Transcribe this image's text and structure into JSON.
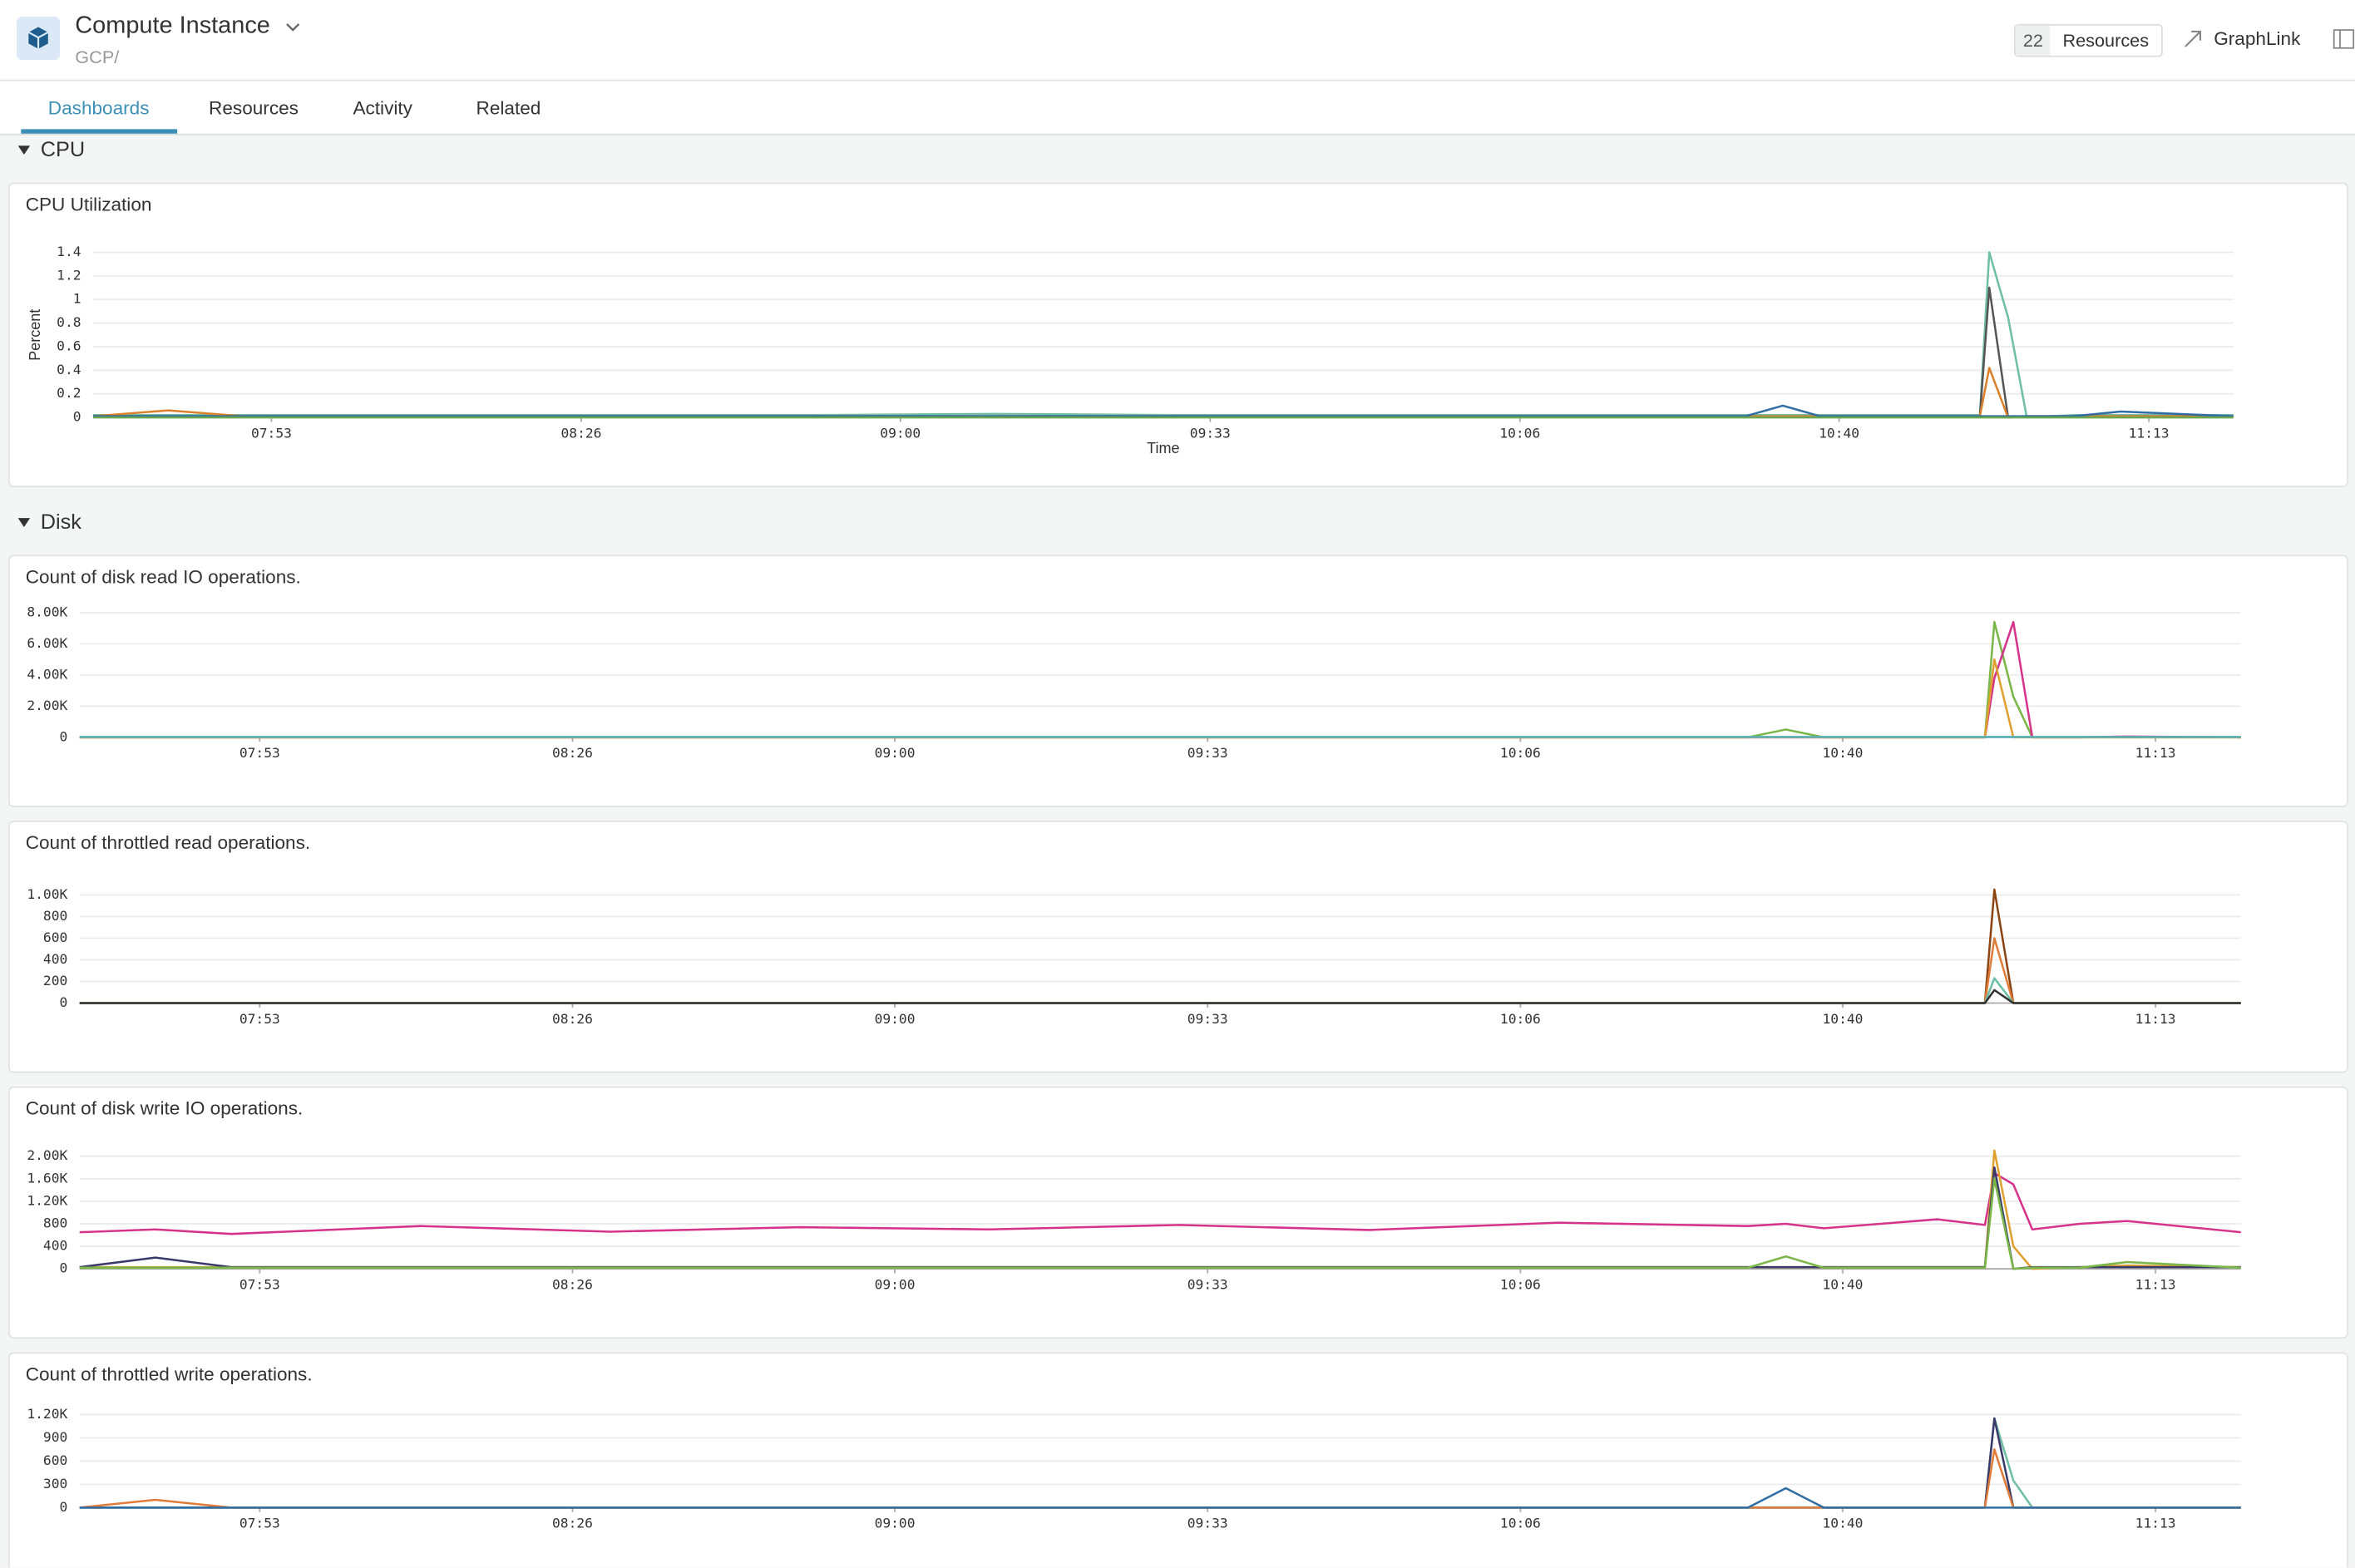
{
  "header": {
    "title": "Compute Instance",
    "subtitle": "GCP/",
    "resource_count": 22,
    "resources_label": "Resources",
    "graphlink": "GraphLink"
  },
  "tabs": [
    "Dashboards",
    "Resources",
    "Activity",
    "Related"
  ],
  "sections": [
    {
      "title": "CPU"
    },
    {
      "title": "Disk"
    }
  ],
  "chart_data": [
    {
      "type": "line",
      "title": "CPU Utilization",
      "ylabel": "Percent",
      "xlabel": "Time",
      "x": [
        454,
        462,
        470,
        490,
        510,
        530,
        550,
        570,
        590,
        610,
        630,
        634,
        638,
        650,
        655,
        656,
        658,
        660,
        665,
        670,
        682
      ],
      "xlim": [
        454,
        682
      ],
      "xticks": [
        {
          "value": 473,
          "label": "07:53"
        },
        {
          "value": 506,
          "label": "08:26"
        },
        {
          "value": 540,
          "label": "09:00"
        },
        {
          "value": 573,
          "label": "09:33"
        },
        {
          "value": 606,
          "label": "10:06"
        },
        {
          "value": 640,
          "label": "10:40"
        },
        {
          "value": 673,
          "label": "11:13"
        }
      ],
      "ylim": [
        0,
        1.4
      ],
      "yticks": [
        0,
        0.2,
        0.4,
        0.6,
        0.8,
        1,
        1.2,
        1.4
      ],
      "grid": true,
      "series": [
        {
          "name": "teal",
          "color": "#6fbfa8",
          "values": [
            0.02,
            0.02,
            0.02,
            0.02,
            0.02,
            0.02,
            0.03,
            0.02,
            0.02,
            0.02,
            0.02,
            0.02,
            0.02,
            0.02,
            0.02,
            1.4,
            0.85,
            0,
            0.02,
            0.02,
            0.02
          ]
        },
        {
          "name": "dark",
          "color": "#555555",
          "values": [
            0.01,
            0.01,
            0.01,
            0.01,
            0.01,
            0.01,
            0.01,
            0.01,
            0.01,
            0.01,
            0.01,
            0.01,
            0.01,
            0.01,
            0.01,
            1.1,
            0,
            0.01,
            0.01,
            0.01,
            0.01
          ]
        },
        {
          "name": "orange",
          "color": "#d9822b",
          "values": [
            0.01,
            0.06,
            0.01,
            0.01,
            0.01,
            0.01,
            0.01,
            0.01,
            0.01,
            0.01,
            0.01,
            0.01,
            0.01,
            0.01,
            0.01,
            0.42,
            0,
            0.01,
            0.01,
            0.01,
            0.01
          ]
        },
        {
          "name": "blue",
          "color": "#2f6da3",
          "values": [
            0.01,
            0.01,
            0.01,
            0.01,
            0.01,
            0.01,
            0.01,
            0.01,
            0.01,
            0.01,
            0.01,
            0.1,
            0.01,
            0.01,
            0.01,
            0.01,
            0.01,
            0.01,
            0.01,
            0.05,
            0.01
          ]
        },
        {
          "name": "green",
          "color": "#6aa84f",
          "values": [
            0,
            0,
            0,
            0,
            0,
            0,
            0,
            0,
            0,
            0,
            0,
            0,
            0,
            0,
            0,
            0,
            0,
            0,
            0,
            0,
            0
          ]
        }
      ]
    },
    {
      "type": "line",
      "title": "Count of disk read IO operations.",
      "x": [
        454,
        462,
        470,
        490,
        510,
        530,
        550,
        570,
        590,
        610,
        630,
        634,
        638,
        650,
        655,
        656,
        658,
        660,
        665,
        670,
        682
      ],
      "xlim": [
        454,
        682
      ],
      "xticks": [
        {
          "value": 473,
          "label": "07:53"
        },
        {
          "value": 506,
          "label": "08:26"
        },
        {
          "value": 540,
          "label": "09:00"
        },
        {
          "value": 573,
          "label": "09:33"
        },
        {
          "value": 606,
          "label": "10:06"
        },
        {
          "value": 640,
          "label": "10:40"
        },
        {
          "value": 673,
          "label": "11:13"
        }
      ],
      "ylim": [
        0,
        8000
      ],
      "yticks": [
        0,
        {
          "value": 2000,
          "label": "2.00K"
        },
        {
          "value": 4000,
          "label": "4.00K"
        },
        {
          "value": 6000,
          "label": "6.00K"
        },
        {
          "value": 8000,
          "label": "8.00K"
        }
      ],
      "grid": true,
      "series": [
        {
          "name": "green",
          "color": "#7ab648",
          "values": [
            0,
            0,
            0,
            0,
            0,
            0,
            0,
            0,
            0,
            0,
            0,
            500,
            0,
            0,
            0,
            7400,
            2600,
            0,
            0,
            0,
            0
          ]
        },
        {
          "name": "pink",
          "color": "#d6338a",
          "values": [
            0,
            0,
            0,
            0,
            0,
            0,
            0,
            0,
            0,
            0,
            0,
            0,
            0,
            0,
            0,
            3800,
            7400,
            0,
            0,
            50,
            0
          ]
        },
        {
          "name": "orange",
          "color": "#e0a030",
          "values": [
            0,
            0,
            0,
            0,
            0,
            0,
            0,
            0,
            0,
            0,
            0,
            0,
            0,
            0,
            0,
            5000,
            0,
            0,
            0,
            0,
            0
          ]
        },
        {
          "name": "teal",
          "color": "#5ab0b8",
          "values": [
            20,
            20,
            20,
            20,
            20,
            20,
            20,
            20,
            20,
            20,
            20,
            20,
            20,
            20,
            20,
            20,
            20,
            20,
            20,
            20,
            20
          ]
        }
      ]
    },
    {
      "type": "line",
      "title": "Count of throttled read operations.",
      "x": [
        454,
        462,
        470,
        490,
        510,
        530,
        550,
        570,
        590,
        610,
        630,
        634,
        638,
        650,
        655,
        656,
        658,
        660,
        665,
        670,
        682
      ],
      "xlim": [
        454,
        682
      ],
      "xticks": [
        {
          "value": 473,
          "label": "07:53"
        },
        {
          "value": 506,
          "label": "08:26"
        },
        {
          "value": 540,
          "label": "09:00"
        },
        {
          "value": 573,
          "label": "09:33"
        },
        {
          "value": 606,
          "label": "10:06"
        },
        {
          "value": 640,
          "label": "10:40"
        },
        {
          "value": 673,
          "label": "11:13"
        }
      ],
      "ylim": [
        0,
        1000
      ],
      "yticks": [
        0,
        200,
        400,
        600,
        800,
        {
          "value": 1000,
          "label": "1.00K"
        }
      ],
      "grid": true,
      "series": [
        {
          "name": "brown",
          "color": "#8b4513",
          "values": [
            0,
            0,
            0,
            0,
            0,
            0,
            0,
            0,
            0,
            0,
            0,
            0,
            0,
            0,
            0,
            1050,
            0,
            0,
            0,
            0,
            0
          ]
        },
        {
          "name": "orange",
          "color": "#e07b39",
          "values": [
            0,
            0,
            0,
            0,
            0,
            0,
            0,
            0,
            0,
            0,
            0,
            0,
            0,
            0,
            0,
            600,
            0,
            0,
            0,
            0,
            0
          ]
        },
        {
          "name": "teal",
          "color": "#6fbfa8",
          "values": [
            0,
            0,
            0,
            0,
            0,
            0,
            0,
            0,
            0,
            0,
            0,
            0,
            0,
            0,
            0,
            230,
            0,
            0,
            0,
            0,
            0
          ]
        },
        {
          "name": "dark",
          "color": "#333333",
          "values": [
            0,
            0,
            0,
            0,
            0,
            0,
            0,
            0,
            0,
            0,
            0,
            0,
            0,
            0,
            0,
            120,
            0,
            0,
            0,
            0,
            0
          ]
        }
      ]
    },
    {
      "type": "line",
      "title": "Count of disk write IO operations.",
      "x": [
        454,
        462,
        470,
        490,
        510,
        530,
        550,
        570,
        590,
        610,
        630,
        634,
        638,
        650,
        655,
        656,
        658,
        660,
        665,
        670,
        682
      ],
      "xlim": [
        454,
        682
      ],
      "xticks": [
        {
          "value": 473,
          "label": "07:53"
        },
        {
          "value": 506,
          "label": "08:26"
        },
        {
          "value": 540,
          "label": "09:00"
        },
        {
          "value": 573,
          "label": "09:33"
        },
        {
          "value": 606,
          "label": "10:06"
        },
        {
          "value": 640,
          "label": "10:40"
        },
        {
          "value": 673,
          "label": "11:13"
        }
      ],
      "ylim": [
        0,
        2000
      ],
      "yticks": [
        0,
        400,
        800,
        {
          "value": 1200,
          "label": "1.20K"
        },
        {
          "value": 1600,
          "label": "1.60K"
        },
        {
          "value": 2000,
          "label": "2.00K"
        }
      ],
      "grid": true,
      "series": [
        {
          "name": "pink",
          "color": "#d6338a",
          "values": [
            650,
            700,
            620,
            760,
            660,
            740,
            700,
            780,
            690,
            820,
            760,
            800,
            720,
            880,
            780,
            1700,
            1500,
            700,
            800,
            850,
            650
          ]
        },
        {
          "name": "orange",
          "color": "#e0a030",
          "values": [
            30,
            30,
            30,
            30,
            30,
            30,
            30,
            30,
            30,
            30,
            30,
            30,
            30,
            30,
            30,
            2100,
            400,
            0,
            30,
            60,
            30
          ]
        },
        {
          "name": "navy",
          "color": "#3a3a6a",
          "values": [
            30,
            200,
            30,
            30,
            30,
            30,
            30,
            30,
            30,
            30,
            30,
            30,
            30,
            30,
            30,
            1800,
            0,
            30,
            30,
            30,
            30
          ]
        },
        {
          "name": "green",
          "color": "#7ab648",
          "values": [
            20,
            20,
            20,
            20,
            20,
            20,
            20,
            20,
            20,
            20,
            20,
            220,
            20,
            20,
            20,
            1600,
            0,
            20,
            20,
            120,
            20
          ]
        }
      ]
    },
    {
      "type": "line",
      "title": "Count of throttled write operations.",
      "x": [
        454,
        462,
        470,
        490,
        510,
        530,
        550,
        570,
        590,
        610,
        630,
        634,
        638,
        650,
        655,
        656,
        658,
        660,
        665,
        670,
        682
      ],
      "xlim": [
        454,
        682
      ],
      "xticks": [
        {
          "value": 473,
          "label": "07:53"
        },
        {
          "value": 506,
          "label": "08:26"
        },
        {
          "value": 540,
          "label": "09:00"
        },
        {
          "value": 573,
          "label": "09:33"
        },
        {
          "value": 606,
          "label": "10:06"
        },
        {
          "value": 640,
          "label": "10:40"
        },
        {
          "value": 673,
          "label": "11:13"
        }
      ],
      "ylim": [
        0,
        1200
      ],
      "yticks": [
        0,
        300,
        600,
        900,
        {
          "value": 1200,
          "label": "1.20K"
        }
      ],
      "grid": true,
      "series": [
        {
          "name": "teal",
          "color": "#6fbfa8",
          "values": [
            0,
            0,
            0,
            0,
            0,
            0,
            0,
            0,
            0,
            0,
            0,
            0,
            0,
            0,
            0,
            1150,
            350,
            0,
            0,
            0,
            0
          ]
        },
        {
          "name": "navy",
          "color": "#3a3a6a",
          "values": [
            0,
            0,
            0,
            0,
            0,
            0,
            0,
            0,
            0,
            0,
            0,
            0,
            0,
            0,
            0,
            1150,
            0,
            0,
            0,
            0,
            0
          ]
        },
        {
          "name": "orange",
          "color": "#e07b39",
          "values": [
            0,
            100,
            0,
            0,
            0,
            0,
            0,
            0,
            0,
            0,
            0,
            0,
            0,
            0,
            0,
            750,
            0,
            0,
            0,
            0,
            0
          ]
        },
        {
          "name": "blue",
          "color": "#2f6da3",
          "values": [
            0,
            0,
            0,
            0,
            0,
            0,
            0,
            0,
            0,
            0,
            0,
            250,
            0,
            0,
            0,
            0,
            0,
            0,
            0,
            0,
            0
          ]
        }
      ]
    }
  ]
}
